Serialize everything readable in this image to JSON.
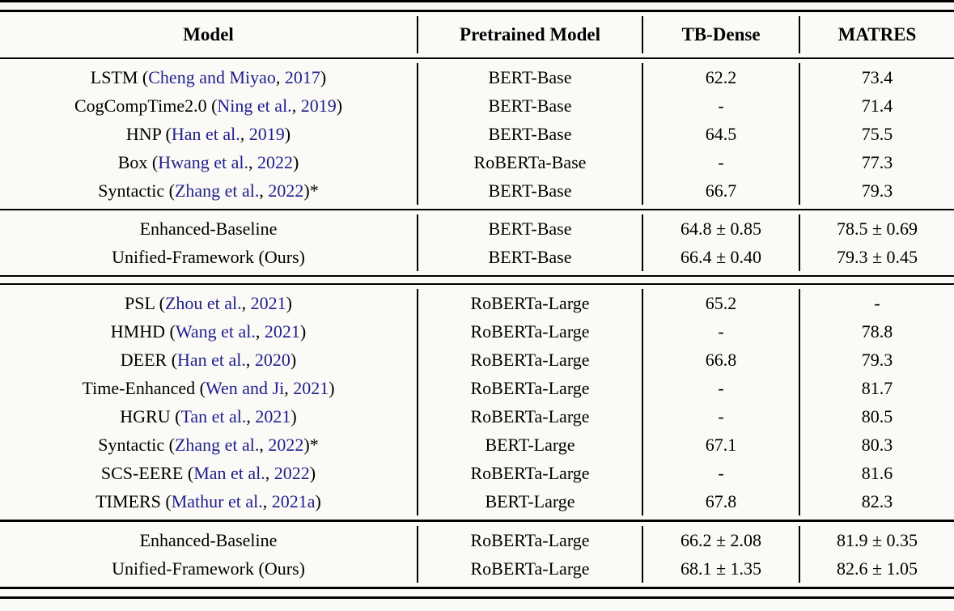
{
  "colors": {
    "citation_link": "#1f1f8c",
    "text": "#000000",
    "rule": "#000000",
    "background": "#fbfaf7"
  },
  "header": {
    "model": "Model",
    "pretrained_model": "Pretrained Model",
    "tb_dense": "TB-Dense",
    "matres": "MATRES"
  },
  "sections": [
    {
      "rows": [
        {
          "pre": "LSTM (",
          "authors": "Cheng and Miyao",
          "sep": ", ",
          "year": "2017",
          "post": ")",
          "pretrained": "BERT-Base",
          "tb_dense": "62.2",
          "matres": "73.4"
        },
        {
          "pre": "CogCompTime2.0 (",
          "authors": "Ning et al.",
          "sep": ", ",
          "year": "2019",
          "post": ")",
          "pretrained": "BERT-Base",
          "tb_dense": "-",
          "matres": "71.4"
        },
        {
          "pre": "HNP (",
          "authors": "Han et al.",
          "sep": ", ",
          "year": "2019",
          "post": ")",
          "pretrained": "BERT-Base",
          "tb_dense": "64.5",
          "matres": "75.5"
        },
        {
          "pre": "Box (",
          "authors": "Hwang et al.",
          "sep": ", ",
          "year": "2022",
          "post": ")",
          "pretrained": "RoBERTa-Base",
          "tb_dense": "-",
          "matres": "77.3"
        },
        {
          "pre": "Syntactic (",
          "authors": "Zhang et al.",
          "sep": ", ",
          "year": "2022",
          "post": ")*",
          "pretrained": "BERT-Base",
          "tb_dense": "66.7",
          "matres": "79.3"
        }
      ]
    },
    {
      "rows": [
        {
          "model": "Enhanced-Baseline",
          "pretrained": "BERT-Base",
          "tb_dense": "64.8 ± 0.85",
          "matres": "78.5 ± 0.69"
        },
        {
          "model": "Unified-Framework (Ours)",
          "pretrained": "BERT-Base",
          "tb_dense": "66.4 ± 0.40",
          "matres": "79.3 ± 0.45"
        }
      ]
    },
    {
      "rows": [
        {
          "pre": "PSL (",
          "authors": "Zhou et al.",
          "sep": ", ",
          "year": "2021",
          "post": ")",
          "pretrained": "RoBERTa-Large",
          "tb_dense": "65.2",
          "matres": "-"
        },
        {
          "pre": "HMHD (",
          "authors": "Wang et al.",
          "sep": ", ",
          "year": "2021",
          "post": ")",
          "pretrained": "RoBERTa-Large",
          "tb_dense": "-",
          "matres": "78.8"
        },
        {
          "pre": "DEER (",
          "authors": "Han et al.",
          "sep": ", ",
          "year": "2020",
          "post": ")",
          "pretrained": "RoBERTa-Large",
          "tb_dense": "66.8",
          "matres": "79.3"
        },
        {
          "pre": "Time-Enhanced (",
          "authors": "Wen and Ji",
          "sep": ", ",
          "year": "2021",
          "post": ")",
          "pretrained": "RoBERTa-Large",
          "tb_dense": "-",
          "matres": "81.7"
        },
        {
          "pre": "HGRU (",
          "authors": "Tan et al.",
          "sep": ", ",
          "year": "2021",
          "post": ")",
          "pretrained": "RoBERTa-Large",
          "tb_dense": "-",
          "matres": "80.5"
        },
        {
          "pre": "Syntactic (",
          "authors": "Zhang et al.",
          "sep": ", ",
          "year": "2022",
          "post": ")*",
          "pretrained": "BERT-Large",
          "tb_dense": "67.1",
          "matres": "80.3"
        },
        {
          "pre": "SCS-EERE (",
          "authors": "Man et al.",
          "sep": ", ",
          "year": "2022",
          "post": ")",
          "pretrained": "RoBERTa-Large",
          "tb_dense": "-",
          "matres": "81.6"
        },
        {
          "pre": "TIMERS (",
          "authors": "Mathur et al.",
          "sep": ", ",
          "year": "2021a",
          "post": ")",
          "pretrained": "BERT-Large",
          "tb_dense": "67.8",
          "matres": "82.3"
        }
      ]
    },
    {
      "rows": [
        {
          "model": "Enhanced-Baseline",
          "pretrained": "RoBERTa-Large",
          "tb_dense": "66.2 ± 2.08",
          "matres": "81.9 ± 0.35"
        },
        {
          "model": "Unified-Framework (Ours)",
          "pretrained": "RoBERTa-Large",
          "tb_dense": "68.1 ± 1.35",
          "matres": "82.6 ± 1.05"
        }
      ]
    }
  ]
}
